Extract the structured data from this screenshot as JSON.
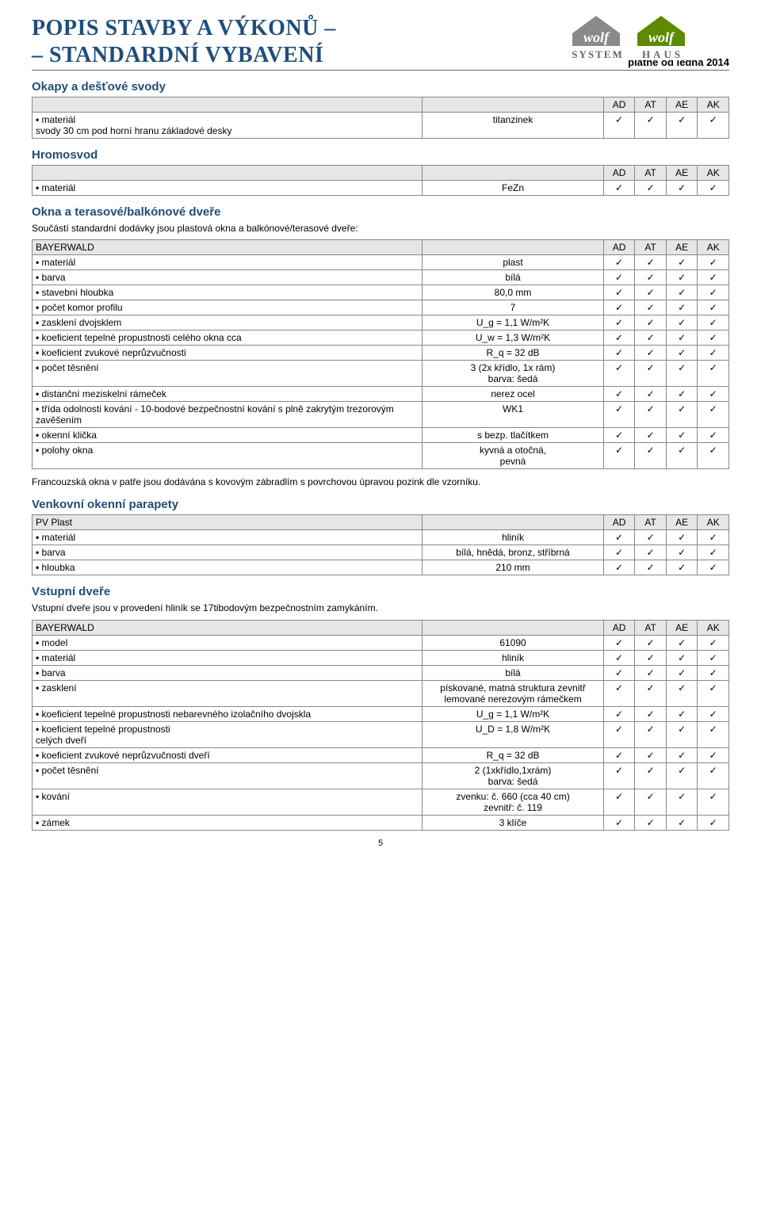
{
  "header": {
    "title_line1": "POPIS  STAVBY A VÝKONŮ –",
    "title_line2": "– STANDARDNÍ VYBAVENÍ",
    "validity": "platné od ledna 2014",
    "logo": {
      "wolf": "wolf",
      "system": "SYSTEM",
      "haus": "HAUS",
      "roof_color": "#f2c200",
      "green": "#5d8a00",
      "gray": "#8a8a8a",
      "text_color": "#666"
    }
  },
  "check_headers": [
    "AD",
    "AT",
    "AE",
    "AK"
  ],
  "check_mark": "✓",
  "okapy": {
    "title": "Okapy a dešťové svody",
    "row": {
      "label": "materiál",
      "label2": "svody 30 cm pod horní hranu základové desky",
      "value": "titanzinek",
      "checks": [
        true,
        true,
        true,
        true
      ]
    }
  },
  "hromosvod": {
    "title": "Hromosvod",
    "row": {
      "label": "materiál",
      "value": "FeZn",
      "checks": [
        true,
        true,
        true,
        true
      ]
    }
  },
  "okna": {
    "title": "Okna a terasové/balkónové dveře",
    "intro": "Součástí standardní dodávky jsou plastová okna a balkónové/terasové dveře:",
    "brand": "BAYERWALD",
    "rows": [
      {
        "label": "materiál",
        "value": "plast",
        "checks": [
          true,
          true,
          true,
          true
        ]
      },
      {
        "label": "barva",
        "value": "bílá",
        "checks": [
          true,
          true,
          true,
          true
        ]
      },
      {
        "label": "stavební hloubka",
        "value": "80,0 mm",
        "checks": [
          true,
          true,
          true,
          true
        ]
      },
      {
        "label": "počet komor profilu",
        "value": "7",
        "checks": [
          true,
          true,
          true,
          true
        ]
      },
      {
        "label": "zasklení dvojsklem",
        "value": "U_g = 1,1 W/m²K",
        "checks": [
          true,
          true,
          true,
          true
        ]
      },
      {
        "label": "koeficient tepelné propustnosti celého okna                                  cca",
        "value": "U_w = 1,3 W/m²K",
        "checks": [
          true,
          true,
          true,
          true
        ]
      },
      {
        "label": "koeficient zvukové neprůzvučnosti",
        "value": "R_q = 32 dB",
        "checks": [
          true,
          true,
          true,
          true
        ]
      },
      {
        "label": "počet těsnění",
        "value": "3 (2x křídlo, 1x rám)\nbarva: šedá",
        "checks": [
          true,
          true,
          true,
          true
        ]
      },
      {
        "label": "distanční meziskelní rámeček",
        "value": "nerez ocel",
        "checks": [
          true,
          true,
          true,
          true
        ]
      },
      {
        "label": "třída odolnosti kování  - 10-bodové bezpečnostní kování s plně zakrytým trezorovým zavěšením",
        "value": "WK1",
        "checks": [
          true,
          true,
          true,
          true
        ]
      },
      {
        "label": "okenní klička",
        "value": "s bezp. tlačítkem",
        "checks": [
          true,
          true,
          true,
          true
        ]
      },
      {
        "label": "polohy okna",
        "value": "kyvná a otočná,\npevná",
        "checks": [
          true,
          true,
          true,
          true
        ]
      }
    ],
    "note": "Francouzská okna v patře jsou dodávána s kovovým zábradlím s povrchovou úpravou pozink dle vzorníku."
  },
  "parapety": {
    "title": "Venkovní okenní parapety",
    "brand": "PV Plast",
    "rows": [
      {
        "label": "materiál",
        "value": "hliník",
        "checks": [
          true,
          true,
          true,
          true
        ]
      },
      {
        "label": "barva",
        "value": "bílá, hnědá, bronz, stříbrná",
        "checks": [
          true,
          true,
          true,
          true
        ]
      },
      {
        "label": "hloubka",
        "value": "210 mm",
        "checks": [
          true,
          true,
          true,
          true
        ]
      }
    ]
  },
  "dvere": {
    "title": "Vstupní dveře",
    "intro": "Vstupní dveře jsou v provedení hliník se 17tibodovým bezpečnostním zamykáním.",
    "brand": "BAYERWALD",
    "rows": [
      {
        "label": "model",
        "value": "61090",
        "checks": [
          true,
          true,
          true,
          true
        ]
      },
      {
        "label": "materiál",
        "value": "hliník",
        "checks": [
          true,
          true,
          true,
          true
        ]
      },
      {
        "label": "barva",
        "value": "bílá",
        "checks": [
          true,
          true,
          true,
          true
        ]
      },
      {
        "label": "zasklení",
        "value": "pískované, matná struktura zevnitř\nlemované nerezovým rámečkem",
        "checks": [
          true,
          true,
          true,
          true
        ]
      },
      {
        "label": "koeficient tepelné propustnosti nebarevného izolačního dvojskla",
        "value": "U_g = 1,1 W/m²K",
        "checks": [
          true,
          true,
          true,
          true
        ]
      },
      {
        "label": "koeficient tepelné propustnosti\ncelých dveří",
        "value": "U_D = 1,8 W/m²K",
        "checks": [
          true,
          true,
          true,
          true
        ]
      },
      {
        "label": "koeficient zvukové neprůzvučnosti dveří",
        "value": "R_q = 32 dB",
        "checks": [
          true,
          true,
          true,
          true
        ]
      },
      {
        "label": "počet těsnění",
        "value": "2 (1xkřídlo,1xrám)\nbarva: šedá",
        "checks": [
          true,
          true,
          true,
          true
        ]
      },
      {
        "label": "kování",
        "value": "zvenku: č. 660 (cca 40 cm)\nzevnitř: č. 119",
        "checks": [
          true,
          true,
          true,
          true
        ]
      },
      {
        "label": "zámek",
        "value": "3 klíče",
        "checks": [
          true,
          true,
          true,
          true
        ]
      }
    ]
  },
  "pagenum": "5",
  "colors": {
    "title_color": "#1f4e79",
    "header_row_bg": "#e6e6e6",
    "border_color": "#888888"
  }
}
